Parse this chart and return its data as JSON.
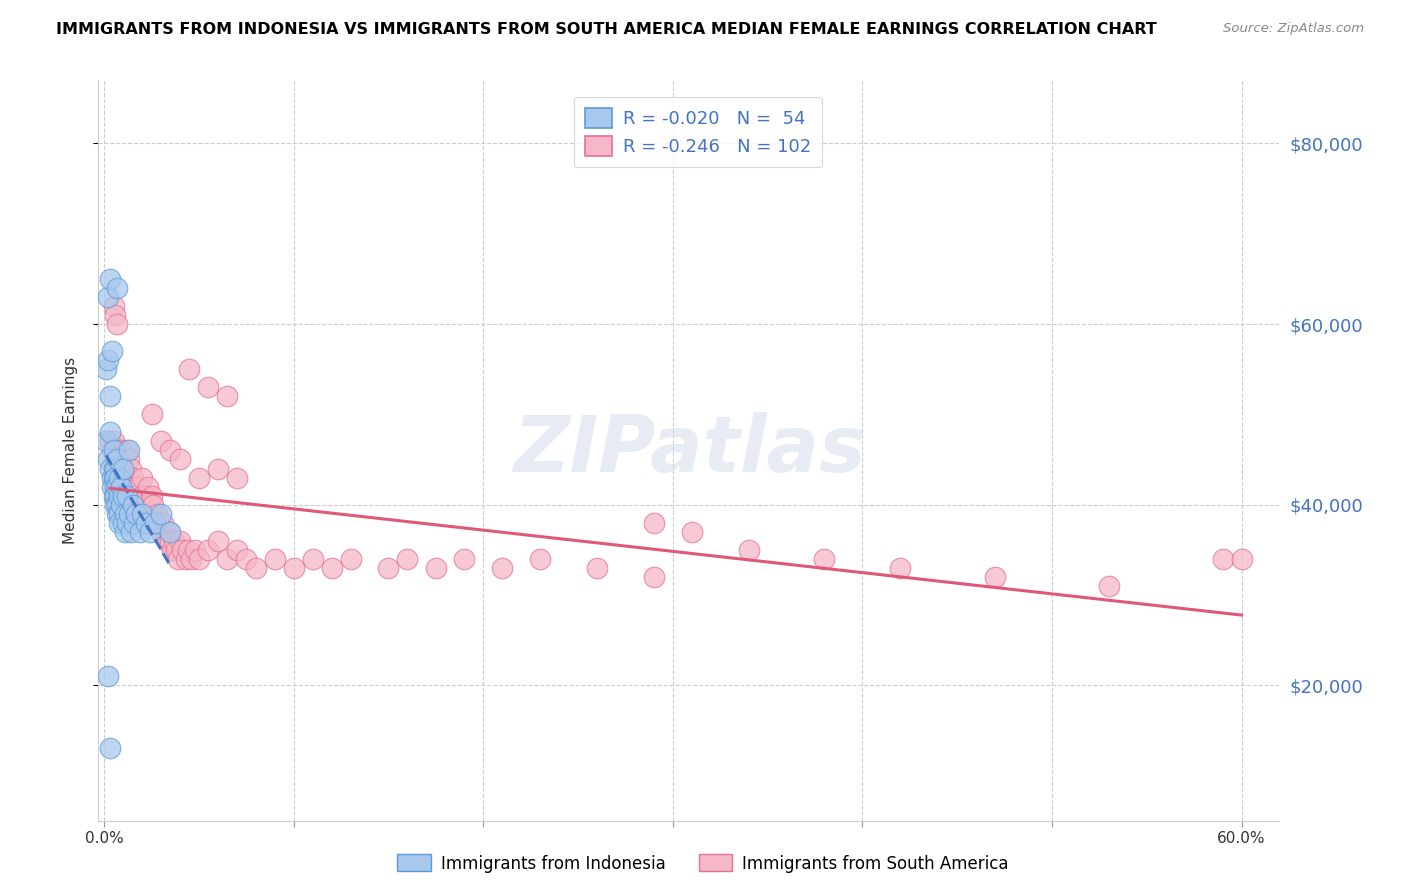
{
  "title": "IMMIGRANTS FROM INDONESIA VS IMMIGRANTS FROM SOUTH AMERICA MEDIAN FEMALE EARNINGS CORRELATION CHART",
  "source": "Source: ZipAtlas.com",
  "ylabel": "Median Female Earnings",
  "watermark": "ZIPatlas",
  "ylim": [
    5000,
    87000
  ],
  "xlim": [
    -0.003,
    0.62
  ],
  "yticks": [
    20000,
    40000,
    60000,
    80000
  ],
  "yticklabels": [
    "$20,000",
    "$40,000",
    "$60,000",
    "$80,000"
  ],
  "xticks": [
    0.0,
    0.1,
    0.2,
    0.3,
    0.4,
    0.5,
    0.6
  ],
  "xticklabels": [
    "0.0%",
    "",
    "",
    "",
    "",
    "",
    "60.0%"
  ],
  "series1": {
    "name": "Immigrants from Indonesia",
    "R": -0.02,
    "N": 54,
    "color": "#a8c8ed",
    "edge_color": "#5b9bd5",
    "line_color": "#4472c4",
    "line_style": "--"
  },
  "series2": {
    "name": "Immigrants from South America",
    "R": -0.246,
    "N": 102,
    "color": "#f4b8c8",
    "edge_color": "#e87090",
    "line_color": "#e05878",
    "line_style": "-"
  },
  "indonesia_x": [
    0.001,
    0.001,
    0.002,
    0.002,
    0.002,
    0.003,
    0.003,
    0.003,
    0.003,
    0.004,
    0.004,
    0.004,
    0.005,
    0.005,
    0.005,
    0.005,
    0.006,
    0.006,
    0.006,
    0.006,
    0.006,
    0.007,
    0.007,
    0.007,
    0.007,
    0.008,
    0.008,
    0.008,
    0.008,
    0.009,
    0.009,
    0.01,
    0.01,
    0.01,
    0.011,
    0.011,
    0.012,
    0.012,
    0.013,
    0.013,
    0.014,
    0.015,
    0.016,
    0.017,
    0.019,
    0.02,
    0.022,
    0.024,
    0.027,
    0.03,
    0.035,
    0.002,
    0.003,
    0.007
  ],
  "indonesia_y": [
    47000,
    55000,
    63000,
    56000,
    45000,
    52000,
    48000,
    44000,
    65000,
    57000,
    43000,
    42000,
    46000,
    44000,
    41000,
    43000,
    44000,
    43000,
    42000,
    41000,
    40000,
    45000,
    42000,
    40000,
    39000,
    43000,
    41000,
    39000,
    38000,
    42000,
    40000,
    44000,
    41000,
    38000,
    39000,
    37000,
    41000,
    38000,
    46000,
    39000,
    37000,
    40000,
    38000,
    39000,
    37000,
    39000,
    38000,
    37000,
    38000,
    39000,
    37000,
    21000,
    13000,
    64000
  ],
  "southamerica_x": [
    0.003,
    0.004,
    0.005,
    0.005,
    0.006,
    0.007,
    0.007,
    0.008,
    0.008,
    0.009,
    0.009,
    0.01,
    0.01,
    0.011,
    0.011,
    0.012,
    0.012,
    0.013,
    0.013,
    0.014,
    0.014,
    0.015,
    0.015,
    0.016,
    0.016,
    0.017,
    0.018,
    0.018,
    0.019,
    0.02,
    0.02,
    0.021,
    0.022,
    0.023,
    0.023,
    0.024,
    0.025,
    0.025,
    0.026,
    0.027,
    0.028,
    0.029,
    0.03,
    0.031,
    0.032,
    0.033,
    0.034,
    0.035,
    0.036,
    0.037,
    0.038,
    0.039,
    0.04,
    0.041,
    0.043,
    0.044,
    0.046,
    0.048,
    0.05,
    0.055,
    0.06,
    0.065,
    0.07,
    0.075,
    0.08,
    0.09,
    0.1,
    0.11,
    0.12,
    0.13,
    0.15,
    0.16,
    0.175,
    0.19,
    0.21,
    0.23,
    0.26,
    0.29,
    0.025,
    0.03,
    0.035,
    0.04,
    0.05,
    0.06,
    0.07,
    0.005,
    0.006,
    0.007,
    0.045,
    0.055,
    0.065,
    0.29,
    0.31,
    0.34,
    0.38,
    0.42,
    0.47,
    0.53,
    0.59,
    0.6
  ],
  "southamerica_y": [
    47000,
    46000,
    47000,
    44000,
    45000,
    46000,
    43000,
    44000,
    42000,
    46000,
    44000,
    45000,
    43000,
    44000,
    42000,
    46000,
    43000,
    45000,
    42000,
    44000,
    41000,
    43000,
    41000,
    42000,
    40000,
    41000,
    42000,
    39000,
    40000,
    43000,
    41000,
    40000,
    41000,
    42000,
    39000,
    40000,
    39000,
    41000,
    40000,
    38000,
    39000,
    38000,
    37000,
    38000,
    37000,
    36000,
    37000,
    36000,
    35000,
    36000,
    35000,
    34000,
    36000,
    35000,
    34000,
    35000,
    34000,
    35000,
    34000,
    35000,
    36000,
    34000,
    35000,
    34000,
    33000,
    34000,
    33000,
    34000,
    33000,
    34000,
    33000,
    34000,
    33000,
    34000,
    33000,
    34000,
    33000,
    32000,
    50000,
    47000,
    46000,
    45000,
    43000,
    44000,
    43000,
    62000,
    61000,
    60000,
    55000,
    53000,
    52000,
    38000,
    37000,
    35000,
    34000,
    33000,
    32000,
    31000,
    34000,
    34000
  ]
}
